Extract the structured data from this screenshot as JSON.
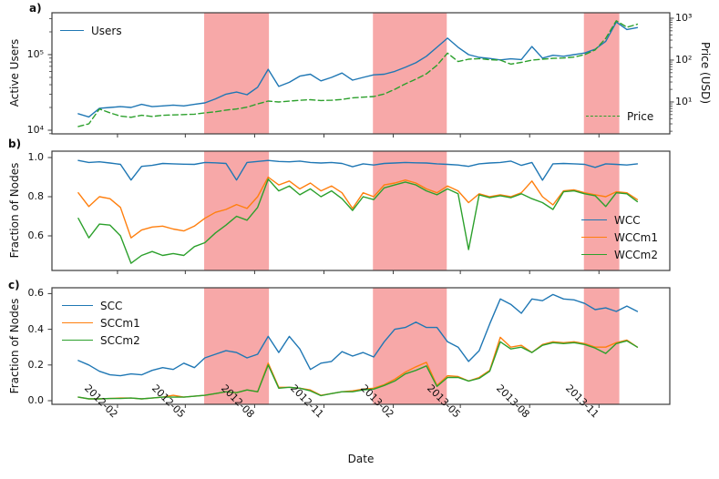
{
  "chart_data": {
    "type": "line",
    "x_label": "Date",
    "xlim": [
      "2011-11-06",
      "2014-02-03"
    ],
    "xticks": [
      {
        "date": "2012-02-01",
        "label": "2012-02"
      },
      {
        "date": "2012-05-01",
        "label": "2012-05"
      },
      {
        "date": "2012-08-01",
        "label": "2012-08"
      },
      {
        "date": "2012-11-01",
        "label": "2012-11"
      },
      {
        "date": "2013-02-01",
        "label": "2013-02"
      },
      {
        "date": "2013-05-01",
        "label": "2013-05"
      },
      {
        "date": "2013-08-01",
        "label": "2013-08"
      },
      {
        "date": "2013-11-01",
        "label": "2013-11"
      }
    ],
    "band_color": "#f7a8a8",
    "highlight_bands": [
      {
        "start": "2012-05-26",
        "end": "2012-08-20"
      },
      {
        "start": "2013-01-05",
        "end": "2013-04-13"
      },
      {
        "start": "2013-10-12",
        "end": "2013-11-28"
      }
    ],
    "x": [
      "2011-12-11",
      "2011-12-25",
      "2012-01-08",
      "2012-01-22",
      "2012-02-05",
      "2012-02-19",
      "2012-03-04",
      "2012-03-18",
      "2012-04-01",
      "2012-04-15",
      "2012-04-29",
      "2012-05-13",
      "2012-05-27",
      "2012-06-10",
      "2012-06-24",
      "2012-07-08",
      "2012-07-22",
      "2012-08-05",
      "2012-08-19",
      "2012-09-02",
      "2012-09-16",
      "2012-09-30",
      "2012-10-14",
      "2012-10-28",
      "2012-11-11",
      "2012-11-25",
      "2012-12-09",
      "2012-12-23",
      "2013-01-06",
      "2013-01-20",
      "2013-02-03",
      "2013-02-17",
      "2013-03-03",
      "2013-03-17",
      "2013-03-31",
      "2013-04-14",
      "2013-04-28",
      "2013-05-12",
      "2013-05-26",
      "2013-06-09",
      "2013-06-23",
      "2013-07-07",
      "2013-07-21",
      "2013-08-04",
      "2013-08-18",
      "2013-09-01",
      "2013-09-15",
      "2013-09-29",
      "2013-10-13",
      "2013-10-27",
      "2013-11-10",
      "2013-11-24",
      "2013-12-08",
      "2013-12-22"
    ],
    "panels": [
      {
        "id": "a",
        "panel_label": "a)",
        "ylabel": "Active Users",
        "y_scale": "log",
        "ylim": [
          8950,
          358000
        ],
        "yticks": [
          {
            "v": 10000,
            "label": "10⁴"
          },
          {
            "v": 100000,
            "label": "10⁵"
          }
        ],
        "right": {
          "ylabel": "Price (USD)",
          "y_scale": "log",
          "ylim": [
            1.73,
            1350
          ],
          "yticks": [
            {
              "v": 10,
              "label": "10¹"
            },
            {
              "v": 100,
              "label": "10²"
            },
            {
              "v": 1000,
              "label": "10³"
            }
          ]
        },
        "series": [
          {
            "name": "Users",
            "axis": "left",
            "color": "#1f77b4",
            "style": "solid",
            "values": [
              16500,
              15000,
              19500,
              20000,
              20500,
              20000,
              22000,
              20500,
              21000,
              21500,
              21000,
              22000,
              23000,
              26000,
              30000,
              32000,
              29500,
              37000,
              64000,
              38000,
              43000,
              52000,
              55000,
              45000,
              50000,
              57000,
              46000,
              50000,
              54000,
              55000,
              60000,
              68000,
              78000,
              95000,
              125000,
              165000,
              125000,
              100000,
              92000,
              89000,
              85000,
              88000,
              86000,
              128000,
              90000,
              98000,
              95000,
              100000,
              105000,
              118000,
              150000,
              270000,
              215000,
              228000
            ]
          },
          {
            "name": "Price",
            "axis": "right",
            "color": "#2ca02c",
            "style": "dashed",
            "values": [
              2.6,
              3.0,
              6.8,
              5.5,
              4.6,
              4.3,
              4.8,
              4.5,
              4.8,
              4.9,
              5.0,
              5.1,
              5.5,
              5.8,
              6.4,
              6.8,
              7.5,
              9.0,
              10.5,
              10.0,
              10.5,
              11.0,
              11.3,
              10.8,
              11.0,
              11.5,
              12.5,
              13.0,
              13.5,
              15.5,
              20,
              27,
              35,
              47,
              75,
              147,
              92,
              105,
              108,
              102,
              100,
              80,
              88,
              100,
              105,
              110,
              112,
              118,
              135,
              175,
              330,
              870,
              610,
              720
            ]
          }
        ]
      },
      {
        "id": "b",
        "panel_label": "b)",
        "ylabel": "Fraction of Nodes",
        "y_scale": "linear",
        "ylim": [
          0.4233,
          1.0326
        ],
        "yticks": [
          {
            "v": 0.6,
            "label": "0.6"
          },
          {
            "v": 0.8,
            "label": "0.8"
          },
          {
            "v": 1.0,
            "label": "1.0"
          }
        ],
        "series": [
          {
            "name": "WCC",
            "axis": "left",
            "color": "#1f77b4",
            "style": "solid",
            "values": [
              0.985,
              0.975,
              0.978,
              0.972,
              0.965,
              0.885,
              0.955,
              0.96,
              0.97,
              0.968,
              0.966,
              0.965,
              0.975,
              0.973,
              0.97,
              0.885,
              0.975,
              0.98,
              0.985,
              0.98,
              0.978,
              0.982,
              0.975,
              0.972,
              0.975,
              0.97,
              0.953,
              0.968,
              0.962,
              0.97,
              0.972,
              0.975,
              0.973,
              0.972,
              0.968,
              0.965,
              0.962,
              0.955,
              0.968,
              0.972,
              0.975,
              0.982,
              0.96,
              0.975,
              0.884,
              0.968,
              0.97,
              0.968,
              0.965,
              0.95,
              0.968,
              0.965,
              0.962,
              0.968
            ]
          },
          {
            "name": "WCCm1",
            "axis": "left",
            "color": "#ff7f0e",
            "style": "solid",
            "values": [
              0.82,
              0.75,
              0.8,
              0.79,
              0.745,
              0.59,
              0.63,
              0.645,
              0.65,
              0.635,
              0.625,
              0.65,
              0.69,
              0.72,
              0.735,
              0.76,
              0.74,
              0.8,
              0.9,
              0.86,
              0.88,
              0.84,
              0.87,
              0.83,
              0.855,
              0.82,
              0.74,
              0.82,
              0.8,
              0.86,
              0.87,
              0.885,
              0.87,
              0.84,
              0.82,
              0.855,
              0.83,
              0.77,
              0.815,
              0.8,
              0.81,
              0.8,
              0.82,
              0.88,
              0.8,
              0.758,
              0.83,
              0.835,
              0.82,
              0.81,
              0.8,
              0.825,
              0.82,
              0.785
            ]
          },
          {
            "name": "WCCm2",
            "axis": "left",
            "color": "#2ca02c",
            "style": "solid",
            "values": [
              0.69,
              0.59,
              0.66,
              0.655,
              0.6,
              0.46,
              0.5,
              0.52,
              0.5,
              0.51,
              0.5,
              0.545,
              0.565,
              0.615,
              0.655,
              0.7,
              0.68,
              0.745,
              0.89,
              0.83,
              0.855,
              0.81,
              0.84,
              0.8,
              0.83,
              0.79,
              0.73,
              0.8,
              0.785,
              0.845,
              0.86,
              0.875,
              0.86,
              0.83,
              0.81,
              0.84,
              0.815,
              0.53,
              0.81,
              0.795,
              0.805,
              0.795,
              0.815,
              0.79,
              0.77,
              0.735,
              0.825,
              0.83,
              0.815,
              0.805,
              0.75,
              0.82,
              0.815,
              0.775
            ]
          }
        ]
      },
      {
        "id": "c",
        "panel_label": "c)",
        "ylabel": "Fraction of Nodes",
        "y_scale": "linear",
        "ylim": [
          -0.0204,
          0.6327
        ],
        "yticks": [
          {
            "v": 0.0,
            "label": "0.0"
          },
          {
            "v": 0.2,
            "label": "0.2"
          },
          {
            "v": 0.4,
            "label": "0.4"
          },
          {
            "v": 0.6,
            "label": "0.6"
          }
        ],
        "series": [
          {
            "name": "SCC",
            "axis": "left",
            "color": "#1f77b4",
            "style": "solid",
            "values": [
              0.225,
              0.2,
              0.165,
              0.145,
              0.14,
              0.15,
              0.145,
              0.17,
              0.185,
              0.175,
              0.21,
              0.185,
              0.24,
              0.26,
              0.28,
              0.27,
              0.24,
              0.26,
              0.36,
              0.27,
              0.36,
              0.29,
              0.175,
              0.21,
              0.22,
              0.275,
              0.25,
              0.27,
              0.245,
              0.33,
              0.4,
              0.41,
              0.44,
              0.41,
              0.41,
              0.33,
              0.3,
              0.22,
              0.28,
              0.43,
              0.57,
              0.54,
              0.49,
              0.57,
              0.56,
              0.595,
              0.57,
              0.565,
              0.545,
              0.51,
              0.52,
              0.5,
              0.53,
              0.5
            ]
          },
          {
            "name": "SCCm1",
            "axis": "left",
            "color": "#ff7f0e",
            "style": "solid",
            "values": [
              0.02,
              0.01,
              0.01,
              0.012,
              0.015,
              0.015,
              0.01,
              0.015,
              0.02,
              0.03,
              0.02,
              0.025,
              0.03,
              0.04,
              0.05,
              0.045,
              0.06,
              0.05,
              0.21,
              0.075,
              0.075,
              0.07,
              0.06,
              0.03,
              0.04,
              0.05,
              0.055,
              0.065,
              0.07,
              0.09,
              0.12,
              0.16,
              0.19,
              0.215,
              0.085,
              0.14,
              0.135,
              0.11,
              0.13,
              0.17,
              0.355,
              0.3,
              0.31,
              0.27,
              0.315,
              0.33,
              0.325,
              0.33,
              0.32,
              0.3,
              0.3,
              0.325,
              0.34,
              0.3
            ]
          },
          {
            "name": "SCCm2",
            "axis": "left",
            "color": "#2ca02c",
            "style": "solid",
            "values": [
              0.02,
              0.01,
              0.01,
              0.012,
              0.012,
              0.015,
              0.01,
              0.015,
              0.02,
              0.02,
              0.02,
              0.025,
              0.03,
              0.04,
              0.05,
              0.045,
              0.06,
              0.05,
              0.2,
              0.07,
              0.075,
              0.07,
              0.055,
              0.028,
              0.04,
              0.05,
              0.05,
              0.06,
              0.065,
              0.085,
              0.11,
              0.15,
              0.17,
              0.195,
              0.08,
              0.13,
              0.13,
              0.11,
              0.125,
              0.165,
              0.33,
              0.29,
              0.3,
              0.27,
              0.31,
              0.325,
              0.32,
              0.325,
              0.315,
              0.295,
              0.265,
              0.32,
              0.335,
              0.3
            ]
          }
        ]
      }
    ]
  }
}
